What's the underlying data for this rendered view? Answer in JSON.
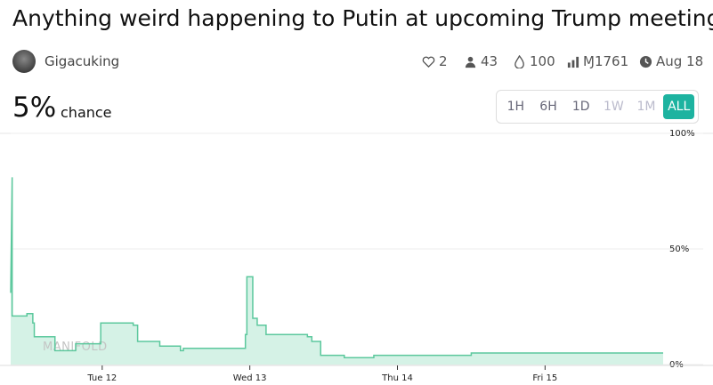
{
  "header": {
    "title": "Anything weird happening to Putin at upcoming Trump meeting?",
    "author": "Gigacuking",
    "stats": {
      "likes": "2",
      "traders": "43",
      "boost": "100",
      "volume": "Ɱ1761",
      "close_date": "Aug 18"
    }
  },
  "probability": {
    "value": "5%",
    "label": "chance"
  },
  "time_buttons": [
    "1H",
    "6H",
    "1D",
    "1W",
    "1M",
    "ALL"
  ],
  "chart_data": {
    "type": "line",
    "step": true,
    "watermark": "MANIFOLD",
    "color": "#5cc89d",
    "fill": "#d5f2e6",
    "grid": true,
    "x": [
      11.38,
      11.39,
      11.39,
      11.49,
      11.49,
      11.53,
      11.53,
      11.54,
      11.54,
      11.68,
      11.68,
      11.82,
      11.82,
      11.99,
      11.99,
      12.21,
      12.21,
      12.24,
      12.24,
      12.39,
      12.39,
      12.53,
      12.53,
      12.55,
      12.55,
      12.97,
      12.97,
      12.98,
      12.98,
      13.02,
      13.02,
      13.05,
      13.05,
      13.11,
      13.11,
      13.39,
      13.39,
      13.42,
      13.42,
      13.48,
      13.48,
      13.64,
      13.64,
      13.84,
      13.84,
      14.5,
      14.5,
      15.8
    ],
    "values": [
      31,
      81,
      21,
      21,
      22,
      22,
      18,
      18,
      12,
      12,
      6,
      6,
      9,
      9,
      18,
      18,
      17,
      17,
      10,
      10,
      8,
      8,
      6,
      6,
      7,
      7,
      13,
      13,
      38,
      38,
      20,
      20,
      17,
      17,
      13,
      13,
      12,
      12,
      10,
      10,
      4,
      4,
      3,
      3,
      4,
      4,
      5,
      5
    ],
    "xlim": [
      11.38,
      15.8
    ],
    "xticks": [
      {
        "value": 12,
        "label": "Tue 12"
      },
      {
        "value": 13,
        "label": "Wed 13"
      },
      {
        "value": 14,
        "label": "Thu 14"
      },
      {
        "value": 15,
        "label": "Fri 15"
      }
    ],
    "ylim": [
      0,
      100
    ],
    "yticks": [
      {
        "value": 0,
        "label": "0%"
      },
      {
        "value": 50,
        "label": "50%"
      },
      {
        "value": 100,
        "label": "100%"
      }
    ]
  }
}
